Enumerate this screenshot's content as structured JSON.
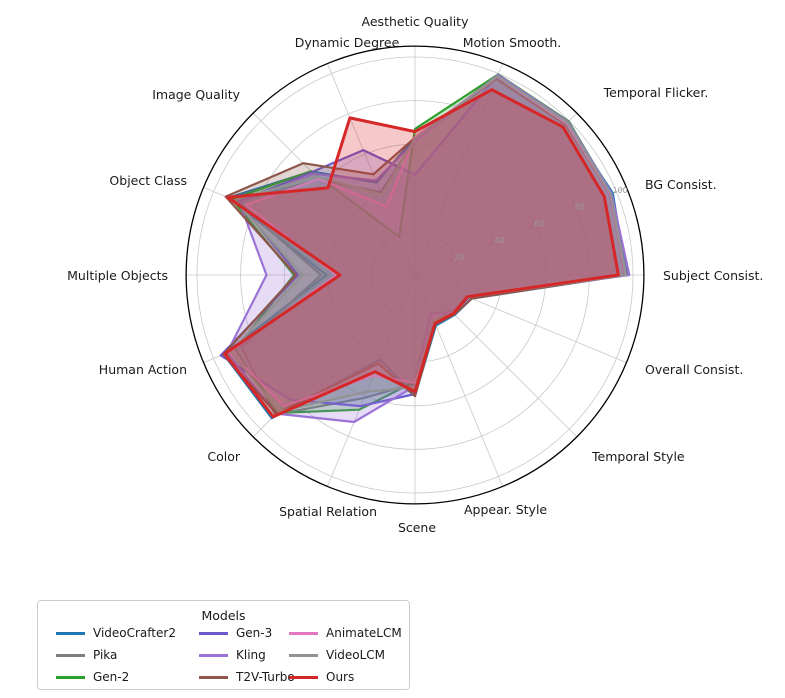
{
  "chart_data": {
    "type": "radar",
    "categories": [
      "Aesthetic Quality",
      "Motion Smooth.",
      "Temporal Flicker.",
      "BG Consist.",
      "Subject Consist.",
      "Overall Consist.",
      "Temporal Style",
      "Appear. Style",
      "Scene",
      "Spatial Relation",
      "Color",
      "Human Action",
      "Multiple Objects",
      "Object Class",
      "Image Quality",
      "Dynamic Degree"
    ],
    "rlim": [
      0,
      105
    ],
    "radial_ticks": [
      20,
      40,
      60,
      80,
      100
    ],
    "grid": true,
    "angle_start": "top",
    "direction": "clockwise",
    "fill_alpha": 0.25,
    "grid_color": "#c8c8c8",
    "spine_color": "#000000",
    "tick_label_color": "#9b9b9b",
    "axis_label_color": "#1a1a1a",
    "series": [
      {
        "name": "VideoCrafter2",
        "color": "#1f77b4",
        "values": [
          63.1,
          97.7,
          98.4,
          98.2,
          96.9,
          28.2,
          25.8,
          25.1,
          55.3,
          42.0,
          92.9,
          95.0,
          40.7,
          92.6,
          67.2,
          46.0
        ]
      },
      {
        "name": "Pika",
        "color": "#7f7f7f",
        "values": [
          62.0,
          99.5,
          99.7,
          97.4,
          96.9,
          25.9,
          24.2,
          22.3,
          49.8,
          61.0,
          90.6,
          86.2,
          43.1,
          88.7,
          61.9,
          41.0
        ]
      },
      {
        "name": "Gen-2",
        "color": "#2ca02c",
        "values": [
          67.0,
          99.6,
          99.6,
          97.6,
          97.6,
          26.2,
          24.1,
          19.3,
          48.9,
          66.9,
          89.5,
          89.2,
          55.5,
          90.9,
          67.4,
          18.9
        ]
      },
      {
        "name": "Gen-3",
        "color": "#6a5acd",
        "values": [
          46.0,
          99.2,
          98.6,
          96.6,
          97.1,
          26.7,
          24.7,
          24.3,
          54.6,
          65.1,
          80.9,
          96.4,
          53.6,
          87.8,
          66.8,
          62.0
        ]
      },
      {
        "name": "Kling",
        "color": "#9b72d6",
        "values": [
          61.2,
          99.4,
          99.3,
          97.6,
          98.3,
          26.4,
          24.2,
          19.6,
          50.9,
          73.0,
          89.9,
          93.4,
          68.1,
          87.2,
          65.6,
          46.9
        ]
      },
      {
        "name": "T2V-Turbo",
        "color": "#8c564b",
        "values": [
          63.0,
          97.3,
          97.5,
          97.0,
          96.3,
          28.2,
          25.5,
          24.4,
          55.6,
          44.0,
          89.9,
          95.2,
          54.7,
          94.0,
          72.5,
          50.0
        ]
      },
      {
        "name": "AnimateLCM",
        "color": "#e377c2",
        "values": [
          63.3,
          98.6,
          98.4,
          97.0,
          96.6,
          26.0,
          25.0,
          23.0,
          49.5,
          50.0,
          85.0,
          92.0,
          36.0,
          84.0,
          62.3,
          34.0
        ]
      },
      {
        "name": "VideoLCM",
        "color": "#929292",
        "values": [
          62.5,
          98.8,
          99.0,
          97.2,
          96.8,
          26.3,
          24.6,
          22.8,
          51.5,
          58.0,
          88.5,
          91.5,
          51.5,
          89.5,
          64.0,
          40.0
        ]
      },
      {
        "name": "Ours",
        "color": "#d62728",
        "values": [
          65.8,
          92.0,
          96.0,
          94.0,
          93.3,
          26.0,
          25.0,
          24.0,
          53.5,
          48.0,
          92.0,
          94.5,
          34.4,
          93.0,
          56.5,
          78.0
        ]
      }
    ],
    "legend": {
      "title": "Models",
      "columns": 3,
      "items": [
        "VideoCrafter2",
        "Pika",
        "Gen-2",
        "Gen-3",
        "Kling",
        "T2V-Turbo",
        "AnimateLCM",
        "VideoLCM",
        "Ours"
      ]
    }
  }
}
